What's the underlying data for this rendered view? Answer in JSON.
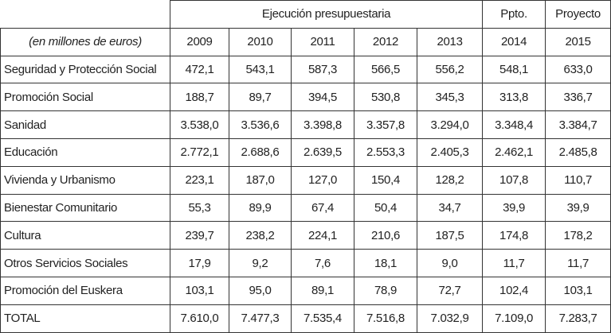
{
  "header": {
    "group": "Ejecución presupuestaria",
    "budget": "Ppto.",
    "project": "Proyecto",
    "unit": "(en millones de euros)",
    "years": [
      "2009",
      "2010",
      "2011",
      "2012",
      "2013",
      "2014",
      "2015"
    ]
  },
  "table": {
    "rows": [
      [
        "Seguridad y Protección Social",
        "472,1",
        "543,1",
        "587,3",
        "566,5",
        "556,2",
        "548,1",
        "633,0"
      ],
      [
        "Promoción Social",
        "188,7",
        "89,7",
        "394,5",
        "530,8",
        "345,3",
        "313,8",
        "336,7"
      ],
      [
        "Sanidad",
        "3.538,0",
        "3.536,6",
        "3.398,8",
        "3.357,8",
        "3.294,0",
        "3.348,4",
        "3.384,7"
      ],
      [
        "Educación",
        "2.772,1",
        "2.688,6",
        "2.639,5",
        "2.553,3",
        "2.405,3",
        "2.462,1",
        "2.485,8"
      ],
      [
        "Vivienda y Urbanismo",
        "223,1",
        "187,0",
        "127,0",
        "150,4",
        "128,2",
        "107,8",
        "110,7"
      ],
      [
        "Bienestar Comunitario",
        "55,3",
        "89,9",
        "67,4",
        "50,4",
        "34,7",
        "39,9",
        "39,9"
      ],
      [
        "Cultura",
        "239,7",
        "238,2",
        "224,1",
        "210,6",
        "187,5",
        "174,8",
        "178,2"
      ],
      [
        "Otros Servicios Sociales",
        "17,9",
        "9,2",
        "7,6",
        "18,1",
        "9,0",
        "11,7",
        "11,7"
      ],
      [
        "Promoción del Euskera",
        "103,1",
        "95,0",
        "89,1",
        "78,9",
        "72,7",
        "102,4",
        "103,1"
      ],
      [
        "TOTAL",
        "7.610,0",
        "7.477,3",
        "7.535,4",
        "7.516,8",
        "7.032,9",
        "7.109,0",
        "7.283,7"
      ]
    ]
  }
}
